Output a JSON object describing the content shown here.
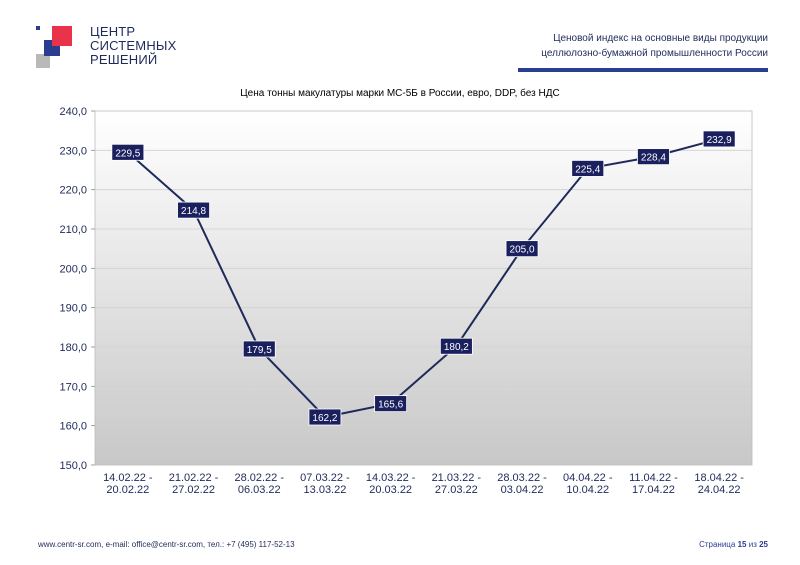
{
  "header": {
    "logo_lines": [
      "ЦЕНТР",
      "СИСТЕМНЫХ",
      "РЕШЕНИЙ"
    ],
    "title_line1": "Ценовой индекс на основные виды продукции",
    "title_line2": "целлюлозно-бумажной промышленности России"
  },
  "colors": {
    "brand_blue": "#2b3d8f",
    "brand_red": "#e8334a",
    "brand_gray": "#b9b9b9",
    "line": "#1f2a5a",
    "label_bg": "#1a1f5e"
  },
  "chart_data": {
    "type": "line",
    "title": "Цена тонны макулатуры марки МС-5Б в России, евро, DDP, без НДС",
    "categories": [
      [
        "14.02.22 -",
        "20.02.22"
      ],
      [
        "21.02.22 -",
        "27.02.22"
      ],
      [
        "28.02.22 -",
        "06.03.22"
      ],
      [
        "07.03.22 -",
        "13.03.22"
      ],
      [
        "14.03.22 -",
        "20.03.22"
      ],
      [
        "21.03.22 -",
        "27.03.22"
      ],
      [
        "28.03.22 -",
        "03.04.22"
      ],
      [
        "04.04.22 -",
        "10.04.22"
      ],
      [
        "11.04.22 -",
        "17.04.22"
      ],
      [
        "18.04.22 -",
        "24.04.22"
      ]
    ],
    "values": [
      229.5,
      214.8,
      179.5,
      162.2,
      165.6,
      180.2,
      205.0,
      225.4,
      228.4,
      232.9
    ],
    "value_labels": [
      "229,5",
      "214,8",
      "179,5",
      "162,2",
      "165,6",
      "180,2",
      "205,0",
      "225,4",
      "228,4",
      "232,9"
    ],
    "ylim": [
      150,
      240
    ],
    "yticks": [
      "150,0",
      "160,0",
      "170,0",
      "180,0",
      "190,0",
      "200,0",
      "210,0",
      "220,0",
      "230,0",
      "240,0"
    ],
    "grid": true,
    "xlabel": "",
    "ylabel": ""
  },
  "footer": {
    "contacts": "www.centr-sr.com, e-mail: office@centr-sr.com, тел.: +7 (495) 117-52-13",
    "page_word": "Страница",
    "page_num": "15",
    "of_word": "из",
    "page_total": "25"
  }
}
